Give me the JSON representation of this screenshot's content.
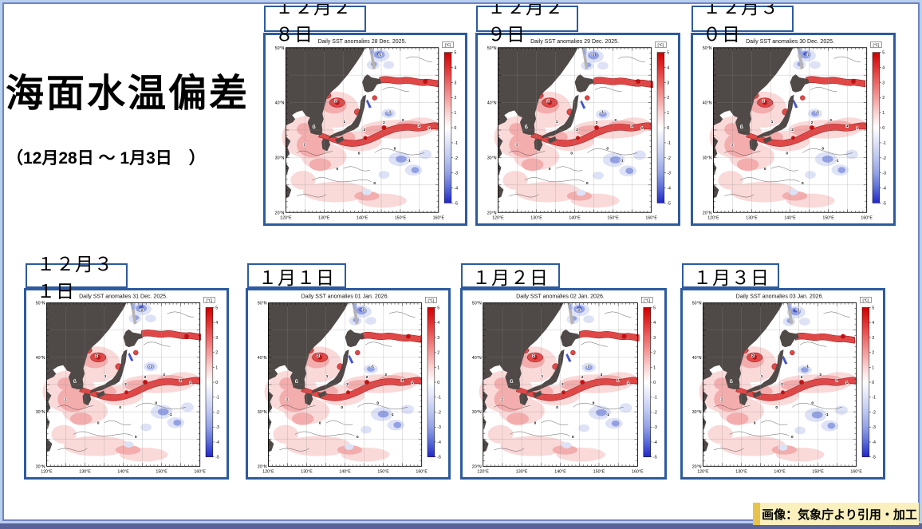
{
  "page": {
    "title": "海面水温偏差",
    "subtitle": "（12月28日 ～ 1月3日　）",
    "credit": "画像：気象庁より引用・加工"
  },
  "panels": [
    {
      "date_label": "１２月２８日",
      "map_title": "Daily SST anomalies 28 Dec. 2025."
    },
    {
      "date_label": "１２月２９日",
      "map_title": "Daily SST anomalies 29 Dec. 2025."
    },
    {
      "date_label": "１２月３０日",
      "map_title": "Daily SST anomalies 30 Dec. 2025."
    },
    {
      "date_label": "１２月３１日",
      "map_title": "Daily SST anomalies 31 Dec. 2025."
    },
    {
      "date_label": "１月１日",
      "map_title": "Daily SST anomalies 01 Jan. 2026."
    },
    {
      "date_label": "１月２日",
      "map_title": "Daily SST anomalies 02 Jan. 2026."
    },
    {
      "date_label": "１月３日",
      "map_title": "Daily SST anomalies 03 Jan. 2026."
    }
  ],
  "map": {
    "lat_labels": [
      "50°N",
      "40°N",
      "30°N",
      "20°N"
    ],
    "lon_labels": [
      "120°E",
      "130°E",
      "140°E",
      "150°E",
      "160°E"
    ],
    "colorbar_unit": "[℃]",
    "colorbar_ticks": [
      "5",
      "4",
      "3",
      "2",
      "1",
      "0",
      "-1",
      "-2",
      "-3",
      "-4",
      "-5"
    ],
    "contour_labels": [
      "1",
      "2",
      "1",
      "2",
      "2",
      "3",
      "1",
      "0",
      "0",
      "-1",
      "-1",
      "0",
      "1",
      "-2",
      "0",
      "1"
    ]
  },
  "colors": {
    "panel_border": "#2e5b9f",
    "land": "#4f4947",
    "land_light": "#b7b3b0",
    "red_deep": "#bf1212",
    "red": "#e04848",
    "pink": "#f3adad",
    "pink_pale": "#fad9d9",
    "blue_deep": "#4253cf",
    "blue": "#93a1e4",
    "blue_pale": "#dde2f6",
    "credit_bg": "#f9f0bd",
    "frame_light": "#b6d0ee",
    "frame_dark": "#59629b"
  }
}
